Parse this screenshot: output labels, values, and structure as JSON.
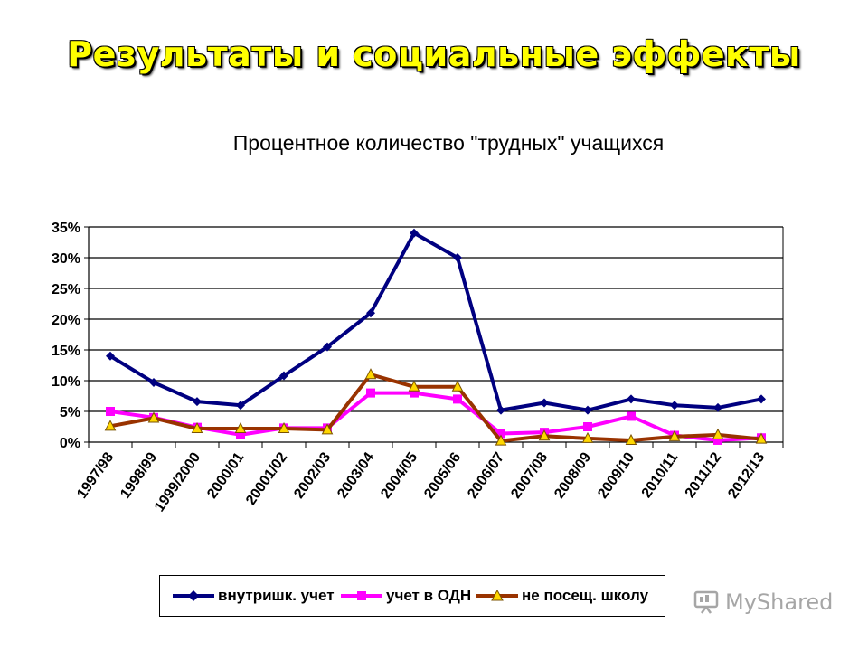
{
  "slide": {
    "title": "Результаты и социальные эффекты"
  },
  "chart_data": {
    "type": "line",
    "title": "Процентное количество \"трудных\" учащихся",
    "xlabel": "",
    "ylabel": "",
    "ylim": [
      0,
      35
    ],
    "y_ticks": [
      "0%",
      "5%",
      "10%",
      "15%",
      "20%",
      "25%",
      "30%",
      "35%"
    ],
    "y_tick_values": [
      0,
      5,
      10,
      15,
      20,
      25,
      30,
      35
    ],
    "grid": true,
    "legend_position": "bottom",
    "categories": [
      "1997/98",
      "1998/99",
      "1999/2000",
      "2000/01",
      "20001/02",
      "2002/03",
      "2003/04",
      "2004/05",
      "2005/06",
      "2006/07",
      "2007/08",
      "2008/09",
      "2009/10",
      "2010/11",
      "2011/12",
      "2012/13"
    ],
    "series": [
      {
        "name": "внутришк. учет",
        "color": "#000080",
        "marker": "diamond",
        "values": [
          14,
          9.7,
          6.6,
          6,
          10.8,
          15.5,
          21,
          34,
          30,
          5.2,
          6.4,
          5.2,
          7,
          6,
          5.6,
          7
        ]
      },
      {
        "name": "учет в ОДН",
        "color": "#ff00ff",
        "marker": "square",
        "values": [
          5,
          4,
          2.4,
          1.2,
          2.3,
          2.3,
          8,
          8,
          7,
          1.4,
          1.6,
          2.5,
          4.2,
          1.1,
          0.3,
          0.7
        ]
      },
      {
        "name": "не посещ. школу",
        "color": "#993300",
        "marker": "triangle",
        "values": [
          2.6,
          3.9,
          2.2,
          2.2,
          2.2,
          2,
          11,
          9,
          9,
          0.2,
          1,
          0.6,
          0.3,
          0.9,
          1.2,
          0.5
        ]
      }
    ]
  },
  "watermark": {
    "text": "MyShared",
    "icon": "presentation-board-icon"
  }
}
